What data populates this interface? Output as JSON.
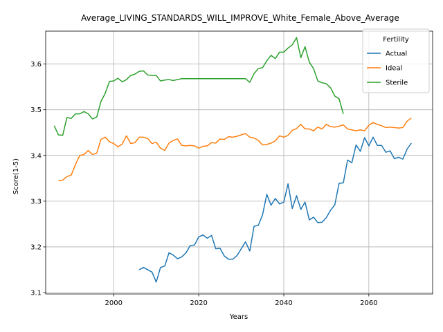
{
  "chart_data": {
    "type": "line",
    "title": "Average_LIVING_STANDARDS_WILL_IMPROVE_White_Female_Above_Average",
    "xlabel": "Years",
    "ylabel": "Score(1-5)",
    "xlim": [
      1984,
      2075
    ],
    "ylim": [
      3.097,
      3.672
    ],
    "xticks": [
      2000,
      2020,
      2040,
      2060
    ],
    "yticks": [
      3.1,
      3.2,
      3.3,
      3.4,
      3.5,
      3.6
    ],
    "grid": true,
    "legend": {
      "title": "Fertility",
      "position": "top-right"
    },
    "series": [
      {
        "name": "Actual",
        "color": "#1f77b4",
        "x": [
          2006,
          2007,
          2008,
          2009,
          2010,
          2011,
          2012,
          2013,
          2014,
          2015,
          2016,
          2017,
          2018,
          2019,
          2020,
          2021,
          2022,
          2023,
          2024,
          2025,
          2026,
          2027,
          2028,
          2029,
          2030,
          2031,
          2032,
          2033,
          2034,
          2035,
          2036,
          2037,
          2038,
          2039,
          2040,
          2041,
          2042,
          2043,
          2044,
          2045,
          2046,
          2047,
          2048,
          2049,
          2050,
          2051,
          2052,
          2053,
          2054,
          2055,
          2056,
          2057,
          2058,
          2059,
          2060,
          2061,
          2062,
          2063,
          2064,
          2065,
          2066,
          2067,
          2068,
          2069,
          2070
        ],
        "y": [
          3.15,
          3.155,
          3.15,
          3.145,
          3.123,
          3.155,
          3.158,
          3.187,
          3.182,
          3.174,
          3.178,
          3.187,
          3.203,
          3.204,
          3.222,
          3.226,
          3.219,
          3.225,
          3.196,
          3.197,
          3.18,
          3.173,
          3.173,
          3.181,
          3.196,
          3.211,
          3.191,
          3.245,
          3.247,
          3.27,
          3.315,
          3.291,
          3.306,
          3.294,
          3.298,
          3.338,
          3.284,
          3.312,
          3.282,
          3.298,
          3.259,
          3.265,
          3.253,
          3.254,
          3.264,
          3.28,
          3.292,
          3.339,
          3.34,
          3.39,
          3.384,
          3.423,
          3.409,
          3.439,
          3.421,
          3.44,
          3.422,
          3.422,
          3.407,
          3.41,
          3.393,
          3.396,
          3.392,
          3.414,
          3.427
        ]
      },
      {
        "name": "Ideal",
        "color": "#ff7f0e",
        "x": [
          1987,
          1988,
          1989,
          1990,
          1991,
          1992,
          1993,
          1994,
          1995,
          1996,
          1997,
          1998,
          1999,
          2000,
          2001,
          2002,
          2003,
          2004,
          2005,
          2006,
          2007,
          2008,
          2009,
          2010,
          2011,
          2012,
          2013,
          2014,
          2015,
          2016,
          2017,
          2018,
          2019,
          2020,
          2021,
          2022,
          2023,
          2024,
          2025,
          2026,
          2027,
          2028,
          2029,
          2030,
          2031,
          2032,
          2033,
          2034,
          2035,
          2036,
          2037,
          2038,
          2039,
          2040,
          2041,
          2042,
          2043,
          2044,
          2045,
          2046,
          2047,
          2048,
          2049,
          2050,
          2051,
          2052,
          2053,
          2054,
          2055,
          2056,
          2057,
          2058,
          2059,
          2060,
          2061,
          2062,
          2063,
          2064,
          2065,
          2066,
          2067,
          2068,
          2069,
          2070
        ],
        "y": [
          3.345,
          3.346,
          3.354,
          3.357,
          3.38,
          3.4,
          3.402,
          3.411,
          3.402,
          3.405,
          3.435,
          3.44,
          3.43,
          3.426,
          3.419,
          3.425,
          3.443,
          3.426,
          3.428,
          3.44,
          3.44,
          3.437,
          3.426,
          3.429,
          3.416,
          3.411,
          3.427,
          3.433,
          3.436,
          3.422,
          3.421,
          3.422,
          3.421,
          3.416,
          3.42,
          3.421,
          3.428,
          3.427,
          3.436,
          3.435,
          3.441,
          3.44,
          3.442,
          3.445,
          3.448,
          3.44,
          3.438,
          3.433,
          3.423,
          3.424,
          3.427,
          3.432,
          3.443,
          3.44,
          3.444,
          3.455,
          3.459,
          3.468,
          3.458,
          3.458,
          3.454,
          3.462,
          3.458,
          3.468,
          3.463,
          3.462,
          3.464,
          3.467,
          3.458,
          3.456,
          3.454,
          3.456,
          3.454,
          3.466,
          3.472,
          3.468,
          3.465,
          3.461,
          3.462,
          3.461,
          3.46,
          3.461,
          3.475,
          3.482
        ]
      },
      {
        "name": "Sterile",
        "color": "#2ca02c",
        "x": [
          1986,
          1987,
          1988,
          1989,
          1990,
          1991,
          1992,
          1993,
          1994,
          1995,
          1996,
          1997,
          1998,
          1999,
          2000,
          2001,
          2002,
          2003,
          2004,
          2005,
          2006,
          2007,
          2008,
          2009,
          2010,
          2011,
          2012,
          2013,
          2014,
          2015,
          2016,
          2017,
          2018,
          2019,
          2020,
          2021,
          2022,
          2023,
          2024,
          2025,
          2026,
          2027,
          2028,
          2029,
          2030,
          2031,
          2032,
          2033,
          2034,
          2035,
          2036,
          2037,
          2038,
          2039,
          2040,
          2041,
          2042,
          2043,
          2044,
          2045,
          2046,
          2047,
          2048,
          2049,
          2050,
          2051,
          2052,
          2053,
          2054
        ],
        "y": [
          3.465,
          3.445,
          3.444,
          3.483,
          3.481,
          3.491,
          3.491,
          3.496,
          3.491,
          3.48,
          3.484,
          3.518,
          3.536,
          3.562,
          3.563,
          3.569,
          3.561,
          3.566,
          3.575,
          3.578,
          3.584,
          3.585,
          3.576,
          3.575,
          3.575,
          3.563,
          3.565,
          3.566,
          3.564,
          3.566,
          3.568,
          3.568,
          3.568,
          3.568,
          3.568,
          3.568,
          3.568,
          3.568,
          3.568,
          3.568,
          3.568,
          3.568,
          3.568,
          3.568,
          3.568,
          3.568,
          3.56,
          3.579,
          3.59,
          3.592,
          3.607,
          3.619,
          3.612,
          3.626,
          3.626,
          3.635,
          3.642,
          3.658,
          3.614,
          3.638,
          3.604,
          3.59,
          3.563,
          3.559,
          3.557,
          3.548,
          3.53,
          3.524,
          3.491
        ]
      }
    ]
  }
}
